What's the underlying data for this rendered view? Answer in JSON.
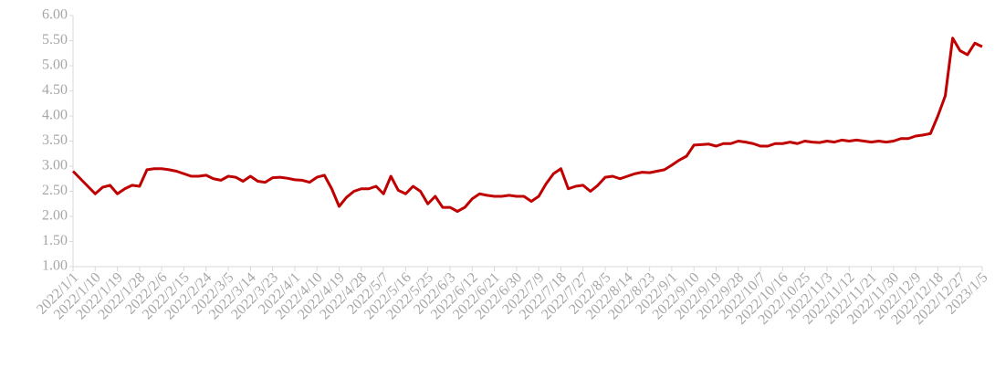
{
  "chart_data": {
    "type": "line",
    "categories": [
      "2022/1/1",
      null,
      null,
      "2022/1/10",
      null,
      null,
      "2022/1/19",
      null,
      null,
      "2022/1/28",
      null,
      null,
      "2022/2/6",
      null,
      null,
      "2022/2/15",
      null,
      null,
      "2022/2/24",
      null,
      null,
      "2022/3/5",
      null,
      null,
      "2022/3/14",
      null,
      null,
      "2022/3/23",
      null,
      null,
      "2022/4/1",
      null,
      null,
      "2022/4/10",
      null,
      null,
      "2022/4/19",
      null,
      null,
      "2022/4/28",
      null,
      null,
      "2022/5/7",
      null,
      null,
      "2022/5/16",
      null,
      null,
      "2022/5/25",
      null,
      null,
      "2022/6/3",
      null,
      null,
      "2022/6/12",
      null,
      null,
      "2022/6/21",
      null,
      null,
      "2022/6/30",
      null,
      null,
      "2022/7/9",
      null,
      null,
      "2022/7/18",
      null,
      null,
      "2022/7/27",
      null,
      null,
      "2022/8/5",
      null,
      null,
      "2022/8/14",
      null,
      null,
      "2022/8/23",
      null,
      null,
      "2022/9/1",
      null,
      null,
      "2022/9/10",
      null,
      null,
      "2022/9/19",
      null,
      null,
      "2022/9/28",
      null,
      null,
      "2022/10/7",
      null,
      null,
      "2022/10/16",
      null,
      null,
      "2022/10/25",
      null,
      null,
      "2022/11/3",
      null,
      null,
      "2022/11/12",
      null,
      null,
      "2022/11/21",
      null,
      null,
      "2022/11/30",
      null,
      null,
      "2022/12/9",
      null,
      null,
      "2022/12/18",
      null,
      null,
      "2022/12/27",
      null,
      null,
      "2023/1/5"
    ],
    "values": [
      2.9,
      2.75,
      2.6,
      2.45,
      2.58,
      2.62,
      2.45,
      2.55,
      2.62,
      2.6,
      2.93,
      2.95,
      2.95,
      2.93,
      2.9,
      2.85,
      2.8,
      2.8,
      2.82,
      2.75,
      2.72,
      2.8,
      2.78,
      2.7,
      2.8,
      2.7,
      2.68,
      2.77,
      2.78,
      2.76,
      2.73,
      2.72,
      2.68,
      2.78,
      2.82,
      2.55,
      2.2,
      2.38,
      2.5,
      2.55,
      2.55,
      2.6,
      2.45,
      2.8,
      2.52,
      2.45,
      2.6,
      2.5,
      2.25,
      2.4,
      2.18,
      2.18,
      2.1,
      2.18,
      2.35,
      2.45,
      2.42,
      2.4,
      2.4,
      2.42,
      2.4,
      2.4,
      2.3,
      2.4,
      2.65,
      2.85,
      2.95,
      2.55,
      2.6,
      2.62,
      2.5,
      2.62,
      2.78,
      2.8,
      2.75,
      2.8,
      2.85,
      2.88,
      2.87,
      2.9,
      2.93,
      3.02,
      3.12,
      3.2,
      3.42,
      3.43,
      3.44,
      3.4,
      3.45,
      3.45,
      3.5,
      3.48,
      3.45,
      3.4,
      3.4,
      3.45,
      3.45,
      3.48,
      3.45,
      3.5,
      3.48,
      3.47,
      3.5,
      3.48,
      3.52,
      3.5,
      3.52,
      3.5,
      3.48,
      3.5,
      3.48,
      3.5,
      3.55,
      3.55,
      3.6,
      3.62,
      3.65,
      4.0,
      4.4,
      5.55,
      5.3,
      5.22,
      5.45,
      5.38
    ],
    "color": "#c00000",
    "ylim": [
      1.0,
      6.0
    ],
    "yticks": [
      {
        "value": 1,
        "label": "1.00"
      },
      {
        "value": 1.5,
        "label": "1.50"
      },
      {
        "value": 2,
        "label": "2.00"
      },
      {
        "value": 2.5,
        "label": "2.50"
      },
      {
        "value": 3,
        "label": "3.00"
      },
      {
        "value": 3.5,
        "label": "3.50"
      },
      {
        "value": 4,
        "label": "4.00"
      },
      {
        "value": 4.5,
        "label": "4.50"
      },
      {
        "value": 5,
        "label": "5.00"
      },
      {
        "value": 5.5,
        "label": "5.50"
      },
      {
        "value": 6,
        "label": "6.00"
      }
    ]
  }
}
